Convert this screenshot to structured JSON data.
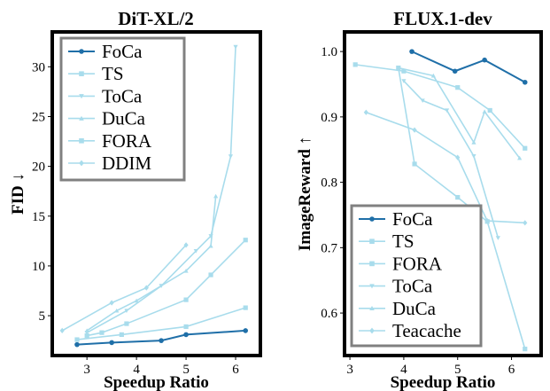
{
  "colors": {
    "focus": "#1f6fa8",
    "light": "#a8dcec",
    "frame": "#000000",
    "legend_border": "#808080"
  },
  "chart_data": [
    {
      "type": "line",
      "title": "DiT-XL/2",
      "xlabel": "Speedup Ratio",
      "ylabel": "FID ↓",
      "xlim": [
        2.3,
        6.5
      ],
      "ylim": [
        1.0,
        33.5
      ],
      "xticks": [
        3,
        4,
        5,
        6
      ],
      "yticks": [
        5,
        10,
        15,
        20,
        25,
        30
      ],
      "grid": false,
      "legend_position": "top-left",
      "series": [
        {
          "name": "FoCa",
          "marker": "circle",
          "highlight": true,
          "x": [
            2.8,
            3.5,
            4.5,
            5.0,
            6.2
          ],
          "y": [
            2.1,
            2.3,
            2.5,
            3.1,
            3.5
          ]
        },
        {
          "name": "TS",
          "marker": "square",
          "x": [
            2.8,
            3.7,
            5.0,
            6.2
          ],
          "y": [
            2.6,
            3.1,
            3.9,
            5.8
          ]
        },
        {
          "name": "ToCa",
          "marker": "triangle-down",
          "x": [
            3.0,
            3.8,
            4.5,
            5.2,
            5.5,
            5.9,
            6.0
          ],
          "y": [
            3.3,
            5.5,
            8.0,
            11.5,
            13.0,
            21.0,
            32.0
          ]
        },
        {
          "name": "DuCa",
          "marker": "triangle-up",
          "x": [
            3.0,
            3.6,
            4.0,
            5.0,
            5.5,
            5.6
          ],
          "y": [
            3.5,
            5.5,
            6.5,
            9.5,
            12.0,
            17.0
          ]
        },
        {
          "name": "FORA",
          "marker": "square",
          "x": [
            3.0,
            3.3,
            3.8,
            5.0,
            5.5,
            6.2
          ],
          "y": [
            3.0,
            3.3,
            4.2,
            6.6,
            9.1,
            12.6
          ]
        },
        {
          "name": "DDIM",
          "marker": "diamond",
          "x": [
            2.5,
            3.5,
            4.2,
            5.0
          ],
          "y": [
            3.5,
            6.3,
            7.8,
            12.1
          ]
        }
      ]
    },
    {
      "type": "line",
      "title": "FLUX.1-dev",
      "xlabel": "Speedup Ratio",
      "ylabel": "ImageReward ↑",
      "xlim": [
        2.9,
        6.55
      ],
      "ylim": [
        0.535,
        1.03
      ],
      "xticks": [
        3,
        4,
        5,
        6
      ],
      "yticks": [
        0.6,
        0.7,
        0.8,
        0.9,
        1.0
      ],
      "grid": false,
      "legend_position": "bottom-left",
      "series": [
        {
          "name": "FoCa",
          "marker": "circle",
          "highlight": true,
          "x": [
            4.15,
            4.95,
            5.5,
            6.25
          ],
          "y": [
            1.0,
            0.97,
            0.987,
            0.953
          ]
        },
        {
          "name": "TS",
          "marker": "square",
          "x": [
            3.1,
            4.0,
            5.0,
            5.6,
            6.25
          ],
          "y": [
            0.98,
            0.97,
            0.945,
            0.91,
            0.852
          ]
        },
        {
          "name": "FORA",
          "marker": "square",
          "x": [
            3.9,
            4.2,
            5.0,
            5.55,
            6.25
          ],
          "y": [
            0.975,
            0.828,
            0.777,
            0.74,
            0.545
          ]
        },
        {
          "name": "ToCa",
          "marker": "triangle-down",
          "x": [
            4.0,
            4.35,
            4.8,
            5.3,
            5.75
          ],
          "y": [
            0.955,
            0.925,
            0.91,
            0.84,
            0.715
          ]
        },
        {
          "name": "DuCa",
          "marker": "triangle-up",
          "x": [
            3.9,
            4.55,
            5.3,
            5.5,
            6.15
          ],
          "y": [
            0.975,
            0.963,
            0.861,
            0.908,
            0.837
          ]
        },
        {
          "name": "Teacache",
          "marker": "diamond",
          "x": [
            3.3,
            4.2,
            5.0,
            5.55,
            6.25
          ],
          "y": [
            0.907,
            0.88,
            0.838,
            0.741,
            0.738
          ]
        }
      ]
    }
  ]
}
